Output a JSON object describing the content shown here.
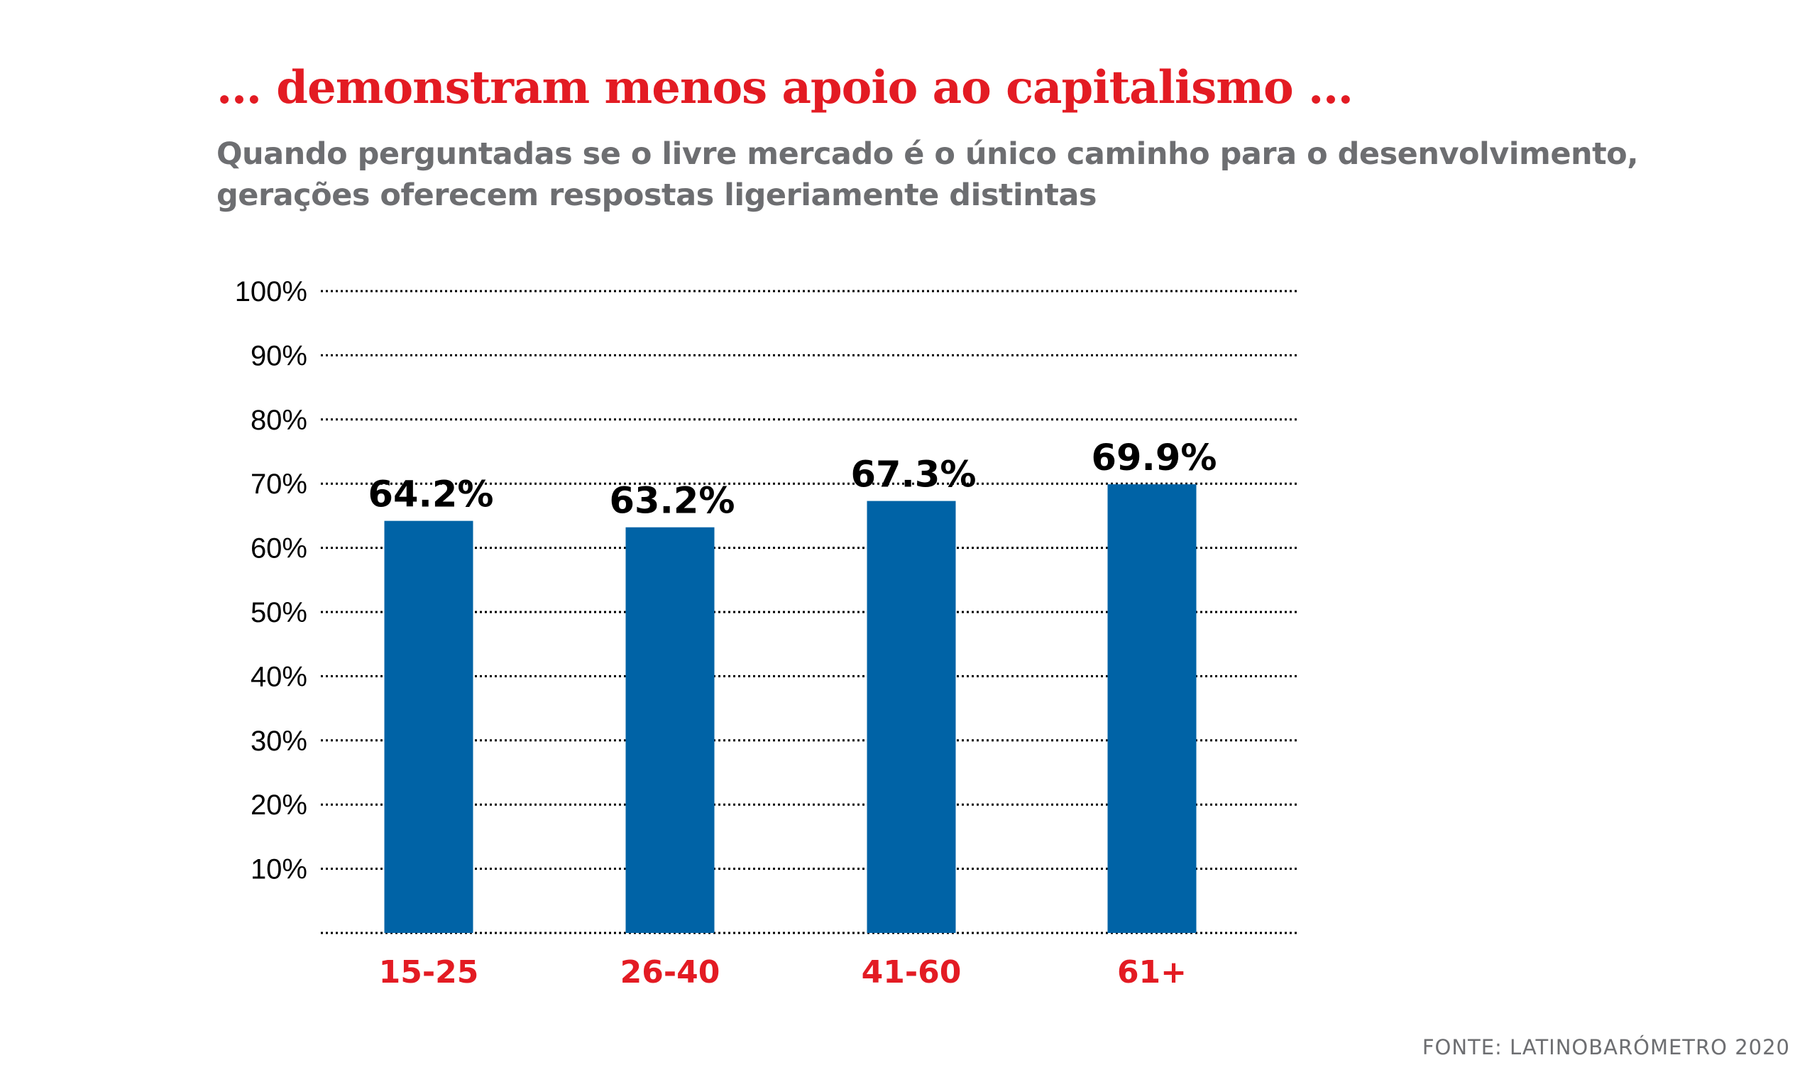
{
  "header": {
    "title": "… demonstram menos apoio ao capitalismo …",
    "subtitle": "Quando perguntadas se o livre mercado é o único caminho para o desenvolvimento, gerações oferecem respostas ligeriamente distintas"
  },
  "footer": {
    "source": "FONTE: LATINOBARÓMETRO 2020"
  },
  "colors": {
    "title": "#e31b23",
    "bar": "#0063a6",
    "category_label": "#e31b23",
    "value_label": "#000000",
    "tick_label": "#000000",
    "gridline": "#000000"
  },
  "chart_data": {
    "type": "bar",
    "categories": [
      "15-25",
      "26-40",
      "41-60",
      "61+"
    ],
    "values": [
      64.2,
      63.2,
      67.3,
      69.9
    ],
    "data_labels": [
      "64.2%",
      "63.2%",
      "67.3%",
      "69.9%"
    ],
    "title": "… demonstram menos apoio ao capitalismo …",
    "subtitle": "Quando perguntadas se o livre mercado é o único caminho para o desenvolvimento, gerações oferecem respostas ligeriamente distintas",
    "xlabel": "",
    "ylabel": "",
    "ylim": [
      0,
      100
    ],
    "yticks": [
      10,
      20,
      30,
      40,
      50,
      60,
      70,
      80,
      90,
      100
    ],
    "ytick_labels": [
      "10%",
      "20%",
      "30%",
      "40%",
      "50%",
      "60%",
      "70%",
      "80%",
      "90%",
      "100%"
    ],
    "grid": true,
    "grid_style": "dotted",
    "legend": "none"
  }
}
